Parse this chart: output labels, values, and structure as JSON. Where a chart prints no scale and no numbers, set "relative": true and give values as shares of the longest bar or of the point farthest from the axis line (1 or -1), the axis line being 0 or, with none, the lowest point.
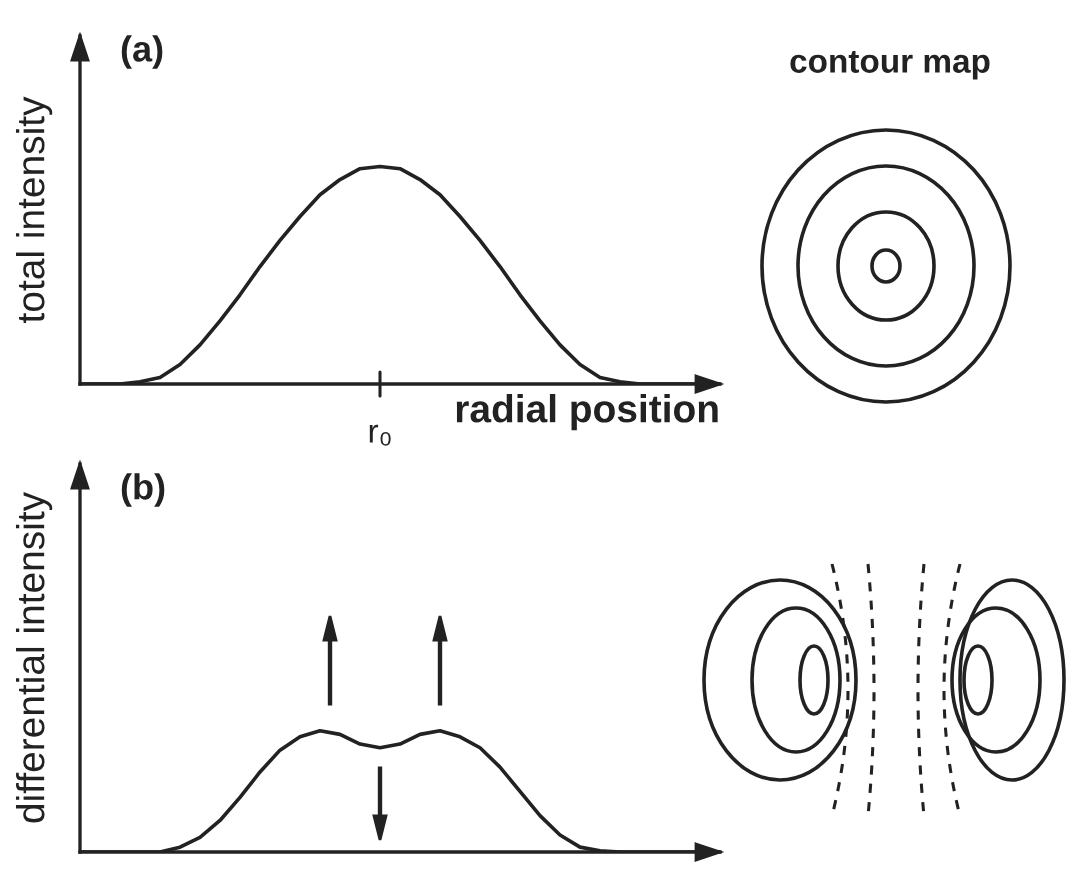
{
  "chart_data": [
    {
      "type": "line",
      "relative": true,
      "ylabel": "total intensity",
      "xlabel": "radial position",
      "annotations": [
        "(a)",
        "contour map",
        "r₀"
      ],
      "categories": [
        null,
        null,
        null,
        null,
        null,
        null,
        null,
        null,
        null,
        null,
        null,
        null,
        null,
        null,
        null,
        null,
        null,
        null,
        null,
        null,
        null,
        null,
        null,
        null,
        null,
        null,
        null,
        null,
        null,
        null,
        null,
        null,
        null
      ],
      "series": [
        {
          "color": "#222222",
          "values": [
            0,
            0,
            0,
            0.01,
            0.03,
            0.09,
            0.18,
            0.29,
            0.41,
            0.54,
            0.66,
            0.77,
            0.87,
            0.94,
            0.99,
            1,
            0.99,
            0.94,
            0.87,
            0.77,
            0.66,
            0.54,
            0.41,
            0.29,
            0.18,
            0.09,
            0.03,
            0.01,
            0,
            0,
            0,
            0,
            0
          ]
        }
      ]
    },
    {
      "type": "line",
      "relative": true,
      "ylabel": "differential intensity",
      "annotations": [
        "(b)"
      ],
      "categories": [
        null,
        null,
        null,
        null,
        null,
        null,
        null,
        null,
        null,
        null,
        null,
        null,
        null,
        null,
        null,
        null,
        null,
        null,
        null,
        null,
        null,
        null,
        null,
        null,
        null,
        null,
        null,
        null,
        null,
        null,
        null,
        null,
        null
      ],
      "series": [
        {
          "color": "#222222",
          "values": [
            0,
            0,
            0,
            0,
            0,
            0.04,
            0.12,
            0.26,
            0.45,
            0.66,
            0.84,
            0.95,
            1,
            0.97,
            0.89,
            0.86,
            0.89,
            0.97,
            1,
            0.95,
            0.86,
            0.7,
            0.5,
            0.3,
            0.14,
            0.04,
            0.01,
            0,
            0,
            0,
            0,
            0,
            0
          ]
        }
      ]
    }
  ]
}
